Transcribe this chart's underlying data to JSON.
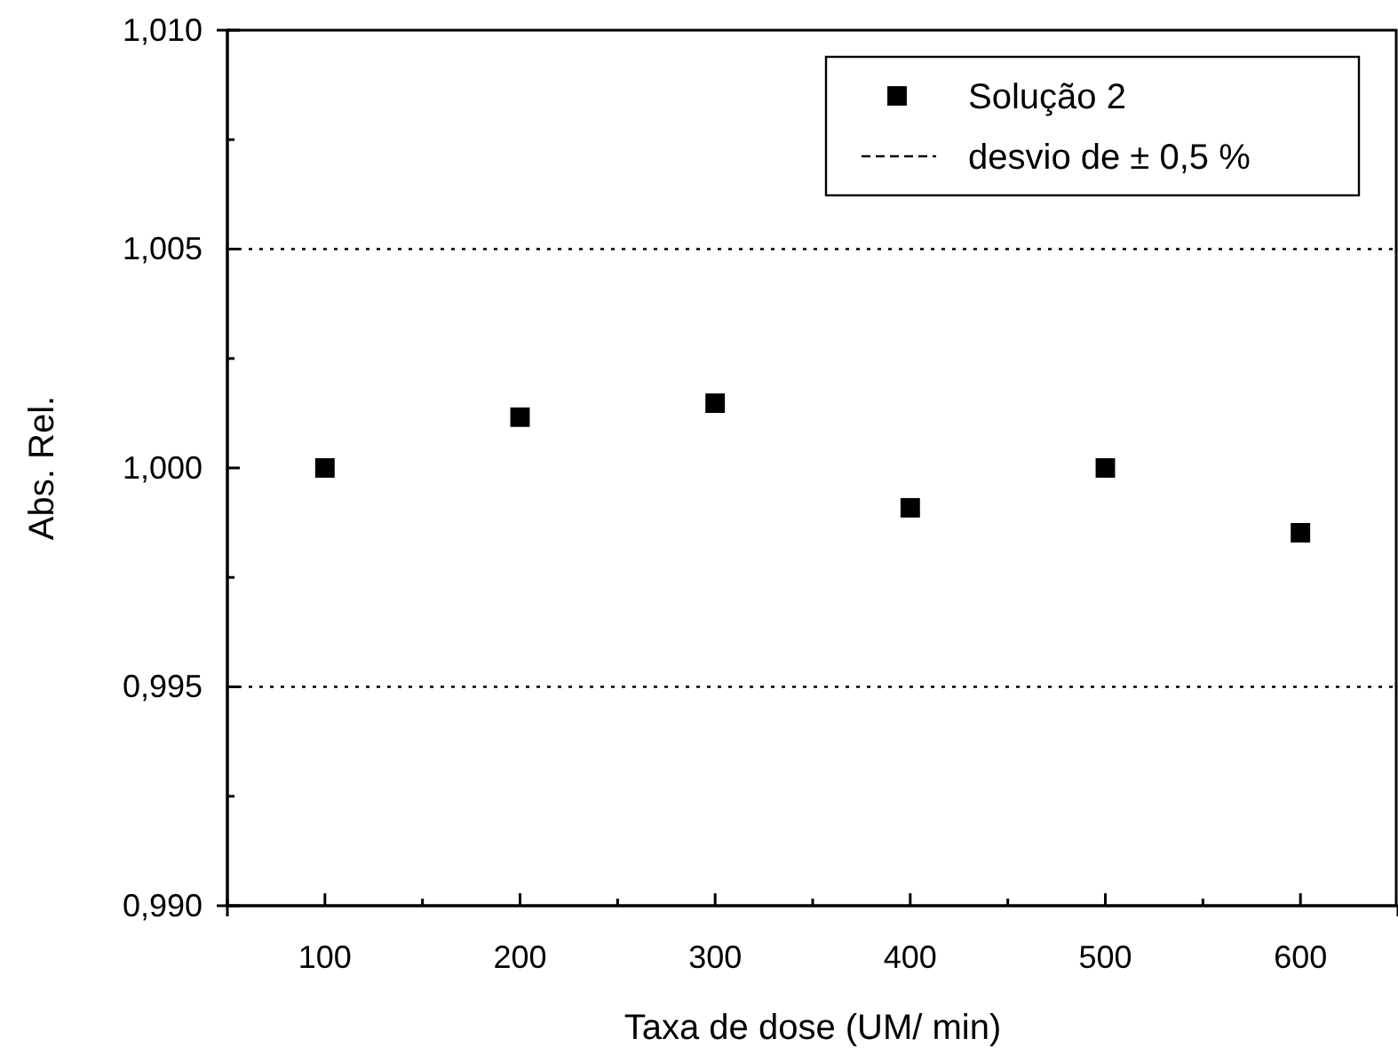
{
  "chart_data": {
    "type": "scatter",
    "xlabel": "Taxa de dose (UM/ min)",
    "ylabel": "Abs. Rel.",
    "x": [
      100,
      200,
      300,
      400,
      500,
      600
    ],
    "series": [
      {
        "name": "Solução 2",
        "color": "#000000",
        "values": [
          1.0,
          1.00116,
          1.00148,
          0.99909,
          1.0,
          0.99852
        ]
      }
    ],
    "marker": "square",
    "legend": "top right",
    "xlim": [
      50,
      650
    ],
    "xticks": [
      {
        "value": 50,
        "label": null
      },
      100,
      {
        "value": 150,
        "label": null
      },
      200,
      {
        "value": 250,
        "label": null
      },
      300,
      {
        "value": 350,
        "label": null
      },
      400,
      {
        "value": 450,
        "label": null
      },
      500,
      {
        "value": 550,
        "label": null
      },
      600
    ],
    "ylim": [
      0.99,
      1.01
    ],
    "yticks": [
      {
        "value": 0.99,
        "label": "0,990"
      },
      {
        "value": 0.9925,
        "label": null
      },
      {
        "value": 0.995,
        "label": "0,995"
      },
      {
        "value": 0.9975,
        "label": null
      },
      {
        "value": 1.0,
        "label": "1,000"
      },
      {
        "value": 1.0025,
        "label": null
      },
      {
        "value": 1.005,
        "label": "1,005"
      },
      {
        "value": 1.0075,
        "label": null
      },
      {
        "value": 1.01,
        "label": "1,010"
      }
    ],
    "ref_lines": [
      {
        "axis": "y",
        "value": 1.005,
        "label": "desvio de ± 0,5 %",
        "color": "#000000",
        "line_style": "dotted"
      },
      {
        "axis": "y",
        "value": 0.995,
        "label": null,
        "color": "#000000",
        "line_style": "dotted"
      }
    ]
  }
}
